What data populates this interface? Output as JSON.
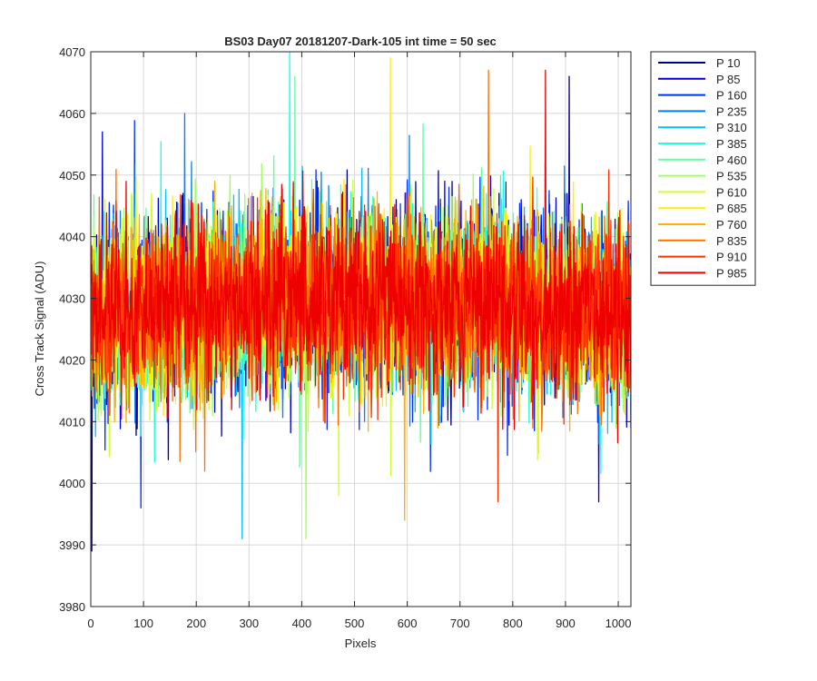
{
  "chart_data": {
    "type": "line",
    "title": "BS03 Day07 20181207-Dark-105 int time = 50 sec",
    "xlabel": "Pixels",
    "ylabel": "Cross Track Signal (ADU)",
    "xlim": [
      0,
      1024
    ],
    "ylim": [
      3980,
      4070
    ],
    "xticks": [
      0,
      100,
      200,
      300,
      400,
      500,
      600,
      700,
      800,
      900,
      1000
    ],
    "yticks": [
      3980,
      3990,
      4000,
      4010,
      4020,
      4030,
      4040,
      4050,
      4060,
      4070
    ],
    "grid": true,
    "legend_position": "outside-top-right",
    "noise": {
      "base": 4027,
      "hump_amplitude": 3,
      "spread": 7,
      "min": 3989,
      "max": 4070
    },
    "spikes": [
      {
        "x": 2,
        "y": 3989
      },
      {
        "x": 22,
        "y": 4057
      },
      {
        "x": 95,
        "y": 3996
      },
      {
        "x": 178,
        "y": 4060
      },
      {
        "x": 287,
        "y": 3991
      },
      {
        "x": 377,
        "y": 4070
      },
      {
        "x": 387,
        "y": 4066
      },
      {
        "x": 408,
        "y": 3991
      },
      {
        "x": 470,
        "y": 3998
      },
      {
        "x": 568,
        "y": 4069
      },
      {
        "x": 595,
        "y": 3994
      },
      {
        "x": 754,
        "y": 4067
      },
      {
        "x": 772,
        "y": 3997
      },
      {
        "x": 862,
        "y": 4067
      },
      {
        "x": 907,
        "y": 4066
      },
      {
        "x": 963,
        "y": 3997
      }
    ],
    "series": [
      {
        "name": "P 10",
        "color": "#00008f"
      },
      {
        "name": "P 85",
        "color": "#0000df"
      },
      {
        "name": "P 160",
        "color": "#0030ff"
      },
      {
        "name": "P 235",
        "color": "#0080ff"
      },
      {
        "name": "P 310",
        "color": "#00c0ff"
      },
      {
        "name": "P 385",
        "color": "#20ffdf"
      },
      {
        "name": "P 460",
        "color": "#60ffa0"
      },
      {
        "name": "P 535",
        "color": "#a0ff60"
      },
      {
        "name": "P 610",
        "color": "#d0ff30"
      },
      {
        "name": "P 685",
        "color": "#ffef00"
      },
      {
        "name": "P 760",
        "color": "#ffb000"
      },
      {
        "name": "P 835",
        "color": "#ff7000"
      },
      {
        "name": "P 910",
        "color": "#ff3000"
      },
      {
        "name": "P 985",
        "color": "#ee0000"
      }
    ]
  }
}
